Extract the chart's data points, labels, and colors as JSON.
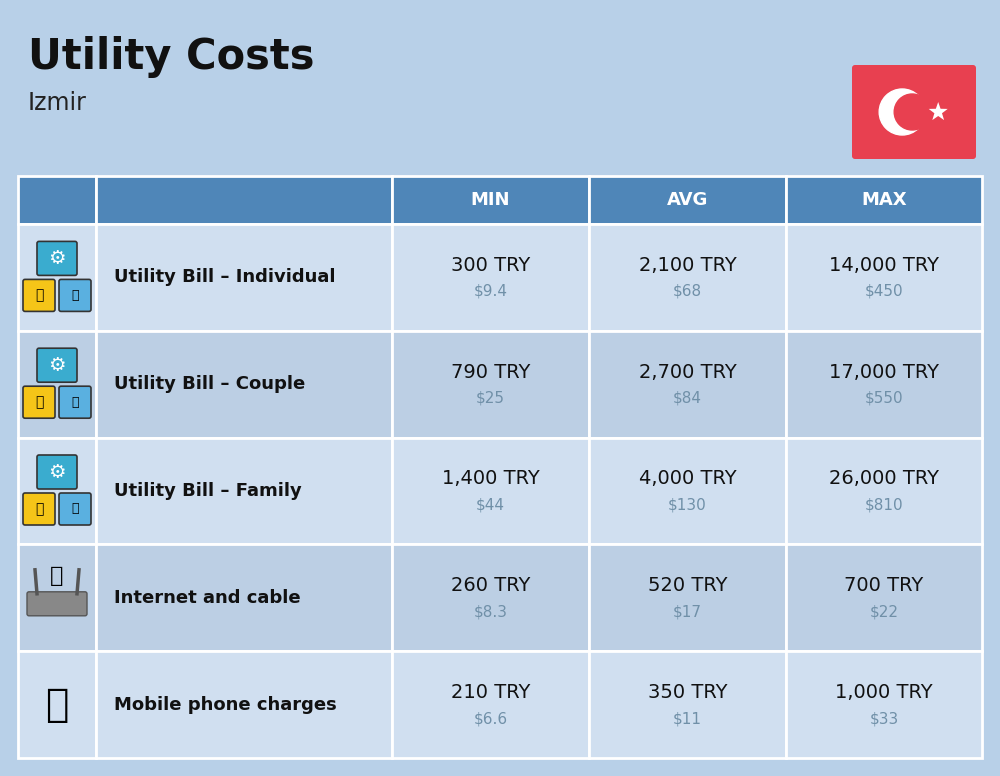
{
  "title": "Utility Costs",
  "subtitle": "Izmir",
  "bg_color": "#b8d0e8",
  "header_bg": "#4f86b8",
  "header_text_color": "#ffffff",
  "row_bg_odd": "#d0dff0",
  "row_bg_even": "#bccfe4",
  "cell_border_color": "#ffffff",
  "columns": [
    "MIN",
    "AVG",
    "MAX"
  ],
  "rows": [
    {
      "label": "Utility Bill – Individual",
      "min_try": "300 TRY",
      "min_usd": "$9.4",
      "avg_try": "2,100 TRY",
      "avg_usd": "$68",
      "max_try": "14,000 TRY",
      "max_usd": "$450"
    },
    {
      "label": "Utility Bill – Couple",
      "min_try": "790 TRY",
      "min_usd": "$25",
      "avg_try": "2,700 TRY",
      "avg_usd": "$84",
      "max_try": "17,000 TRY",
      "max_usd": "$550"
    },
    {
      "label": "Utility Bill – Family",
      "min_try": "1,400 TRY",
      "min_usd": "$44",
      "avg_try": "4,000 TRY",
      "avg_usd": "$130",
      "max_try": "26,000 TRY",
      "max_usd": "$810"
    },
    {
      "label": "Internet and cable",
      "min_try": "260 TRY",
      "min_usd": "$8.3",
      "avg_try": "520 TRY",
      "avg_usd": "$17",
      "max_try": "700 TRY",
      "max_usd": "$22"
    },
    {
      "label": "Mobile phone charges",
      "min_try": "210 TRY",
      "min_usd": "$6.6",
      "avg_try": "350 TRY",
      "avg_usd": "$11",
      "max_try": "1,000 TRY",
      "max_usd": "$33"
    }
  ],
  "flag_bg": "#e84050",
  "title_fontsize": 30,
  "subtitle_fontsize": 17,
  "header_fontsize": 13,
  "label_fontsize": 13,
  "value_fontsize": 14,
  "usd_fontsize": 11,
  "usd_color": "#7090a8"
}
